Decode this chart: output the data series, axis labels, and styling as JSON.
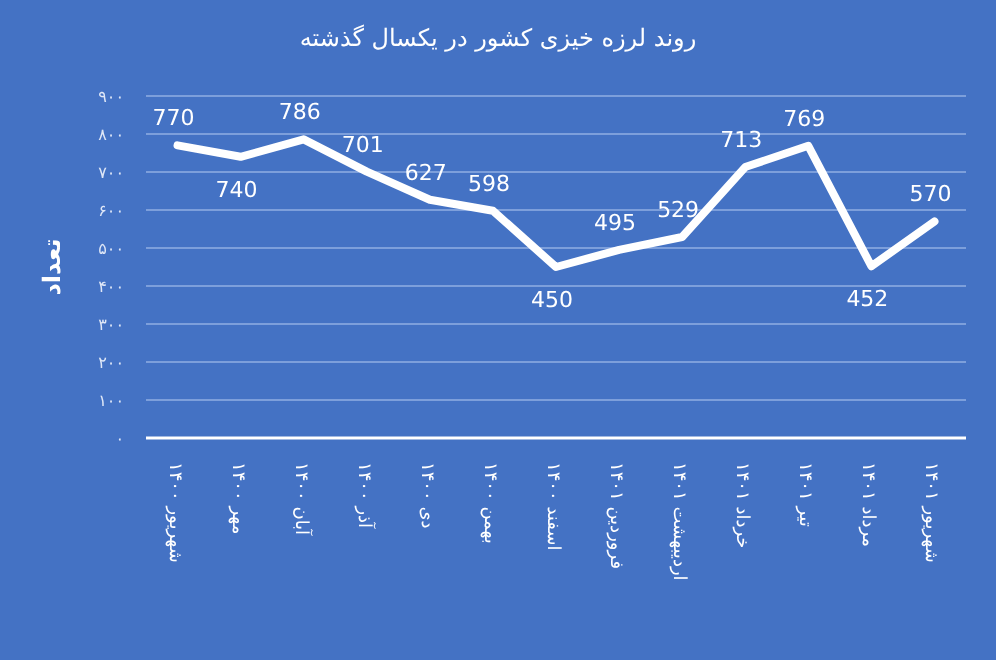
{
  "chart_data": {
    "type": "line",
    "title": "روند لرزه خیزی کشور در یکسال گذشته",
    "ylabel": "تعداد",
    "categories": [
      "شهریور ۱۴۰۰",
      "مهر ۱۴۰۰",
      "آبان ۱۴۰۰",
      "آذر ۱۴۰۰",
      "دی ۱۴۰۰",
      "بهمن ۱۴۰۰",
      "اسفند ۱۴۰۰",
      "فروردین ۱۴۰۱",
      "اردیبهشت ۱۴۰۱",
      "خرداد ۱۴۰۱",
      "تیر ۱۴۰۱",
      "مرداد ۱۴۰۱",
      "شهریور ۱۴۰۱"
    ],
    "series": [
      {
        "color": "#ffffff",
        "values": [
          770,
          740,
          786,
          701,
          627,
          598,
          450,
          495,
          529,
          713,
          769,
          452,
          570
        ]
      }
    ],
    "ylim": [
      0,
      900
    ],
    "yticks": [
      {
        "value": 0,
        "label": "۰"
      },
      {
        "value": 100,
        "label": "۱۰۰"
      },
      {
        "value": 200,
        "label": "۲۰۰"
      },
      {
        "value": 300,
        "label": "۳۰۰"
      },
      {
        "value": 400,
        "label": "۴۰۰"
      },
      {
        "value": 500,
        "label": "۵۰۰"
      },
      {
        "value": 600,
        "label": "۶۰۰"
      },
      {
        "value": 700,
        "label": "۷۰۰"
      },
      {
        "value": 800,
        "label": "۸۰۰"
      },
      {
        "value": 900,
        "label": "۹۰۰"
      }
    ],
    "grid": "y",
    "data_labels": true,
    "marker": "none",
    "line_style": "solid"
  }
}
